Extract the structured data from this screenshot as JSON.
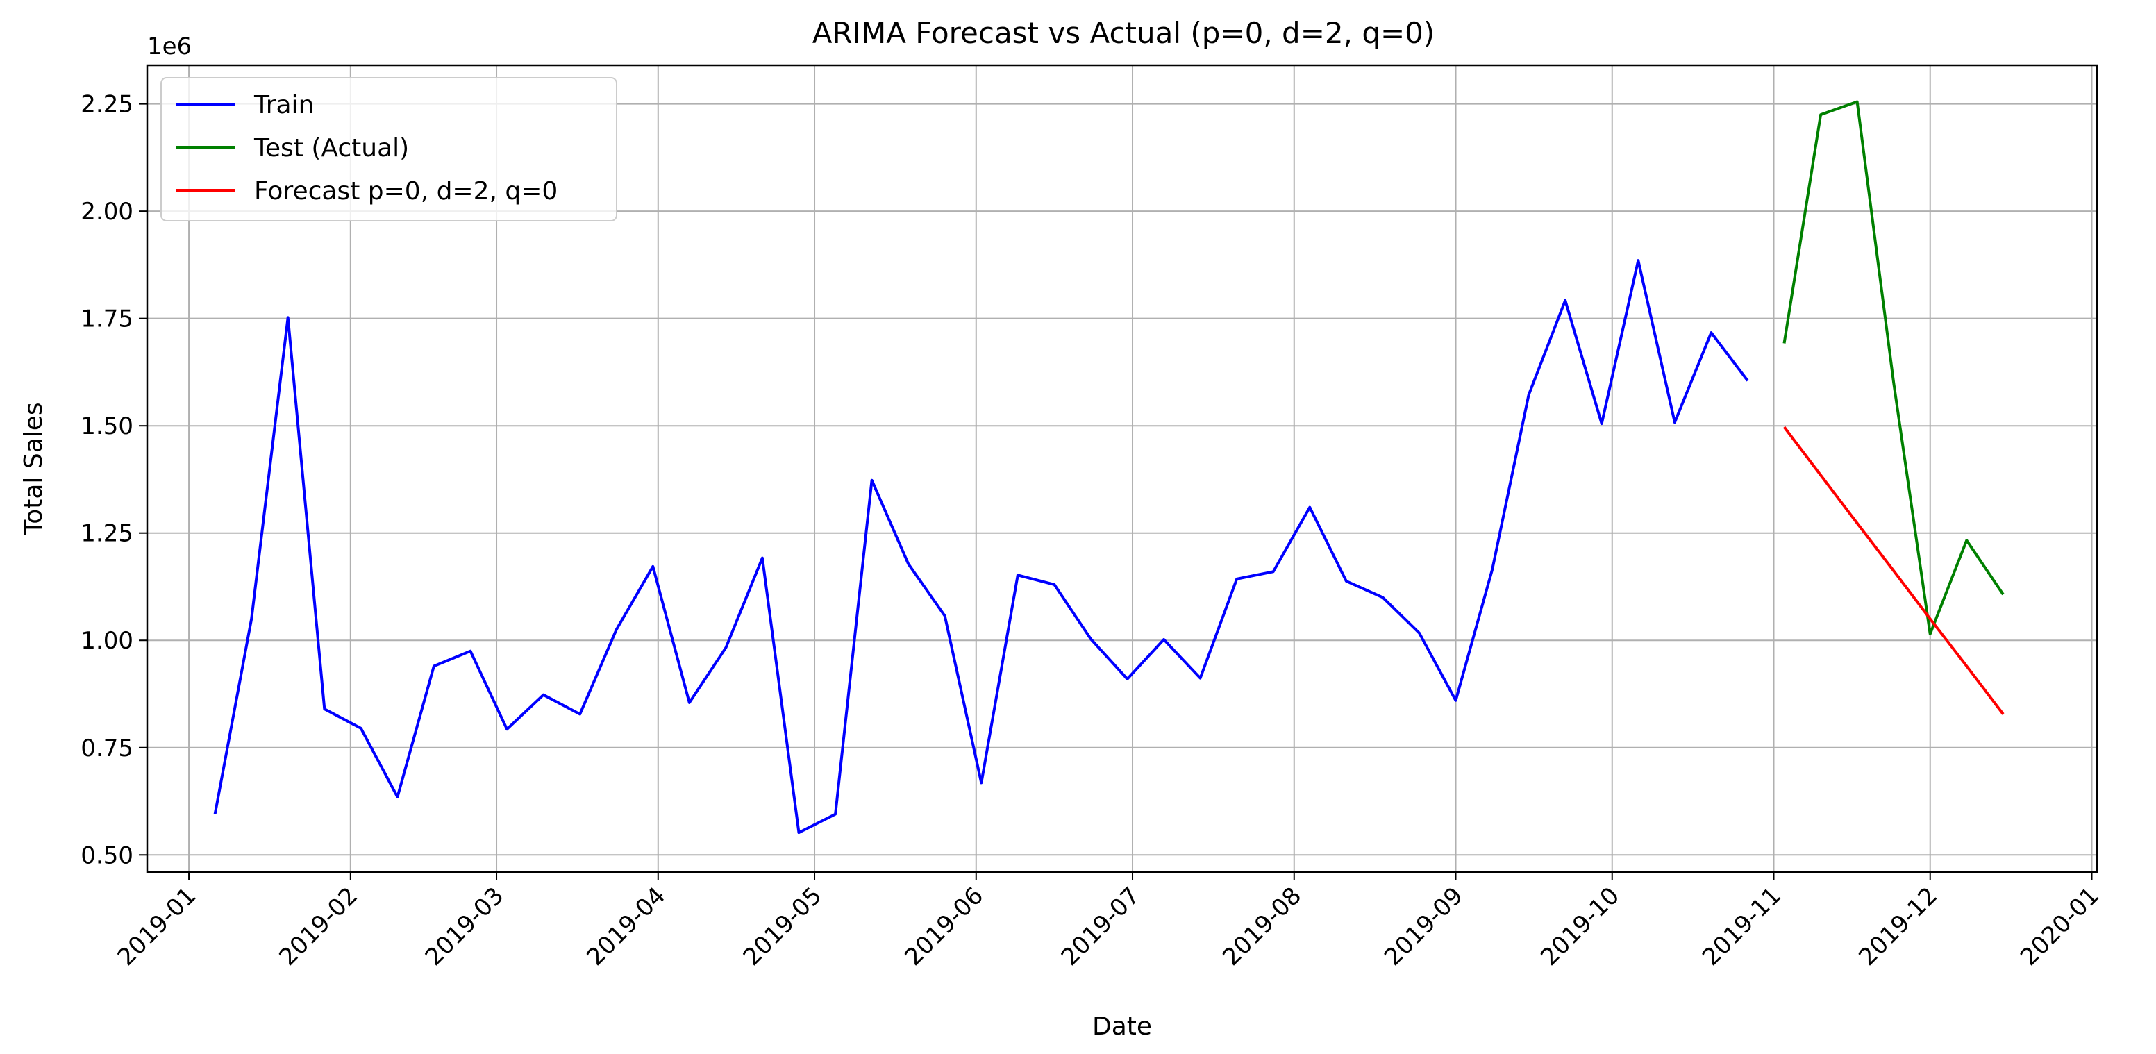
{
  "chart_data": {
    "type": "line",
    "title": "ARIMA Forecast vs Actual (p=0, d=2, q=0)",
    "xlabel": "Date",
    "ylabel": "Total Sales",
    "y_offset_label": "1e6",
    "y_multiplier": 1000000,
    "xlim": [
      "2018-12-24",
      "2020-01-02"
    ],
    "ylim": [
      460000,
      2340000
    ],
    "x_ticks": [
      "2019-01-01",
      "2019-02-01",
      "2019-03-01",
      "2019-04-01",
      "2019-05-01",
      "2019-06-01",
      "2019-07-01",
      "2019-08-01",
      "2019-09-01",
      "2019-10-01",
      "2019-11-01",
      "2019-12-01",
      "2020-01-01"
    ],
    "x_tick_labels": [
      "2019-01",
      "2019-02",
      "2019-03",
      "2019-04",
      "2019-05",
      "2019-06",
      "2019-07",
      "2019-08",
      "2019-09",
      "2019-10",
      "2019-11",
      "2019-12",
      "2020-01"
    ],
    "y_ticks": [
      500000,
      750000,
      1000000,
      1250000,
      1500000,
      1750000,
      2000000,
      2250000
    ],
    "y_tick_labels": [
      "0.50",
      "0.75",
      "1.00",
      "1.25",
      "1.50",
      "1.75",
      "2.00",
      "2.25"
    ],
    "grid": true,
    "legend_position": "top-left",
    "series": [
      {
        "name": "Train",
        "color": "#0000ff",
        "points": [
          [
            "2019-01-06",
            595000
          ],
          [
            "2019-01-13",
            1050000
          ],
          [
            "2019-01-20",
            1752000
          ],
          [
            "2019-01-27",
            840000
          ],
          [
            "2019-02-03",
            795000
          ],
          [
            "2019-02-10",
            635000
          ],
          [
            "2019-02-17",
            940000
          ],
          [
            "2019-02-24",
            975000
          ],
          [
            "2019-03-03",
            793000
          ],
          [
            "2019-03-10",
            873000
          ],
          [
            "2019-03-17",
            828000
          ],
          [
            "2019-03-24",
            1025000
          ],
          [
            "2019-03-31",
            1172000
          ],
          [
            "2019-04-07",
            855000
          ],
          [
            "2019-04-14",
            983000
          ],
          [
            "2019-04-21",
            1192000
          ],
          [
            "2019-04-28",
            552000
          ],
          [
            "2019-05-05",
            595000
          ],
          [
            "2019-05-12",
            1373000
          ],
          [
            "2019-05-19",
            1178000
          ],
          [
            "2019-05-26",
            1057000
          ],
          [
            "2019-06-02",
            668000
          ],
          [
            "2019-06-09",
            1152000
          ],
          [
            "2019-06-16",
            1130000
          ],
          [
            "2019-06-23",
            1003000
          ],
          [
            "2019-06-30",
            910000
          ],
          [
            "2019-07-07",
            1002000
          ],
          [
            "2019-07-14",
            912000
          ],
          [
            "2019-07-21",
            1143000
          ],
          [
            "2019-07-28",
            1160000
          ],
          [
            "2019-08-04",
            1310000
          ],
          [
            "2019-08-11",
            1138000
          ],
          [
            "2019-08-18",
            1100000
          ],
          [
            "2019-08-25",
            1017000
          ],
          [
            "2019-09-01",
            860000
          ],
          [
            "2019-09-08",
            1165000
          ],
          [
            "2019-09-15",
            1572000
          ],
          [
            "2019-09-22",
            1792000
          ],
          [
            "2019-09-29",
            1505000
          ],
          [
            "2019-10-06",
            1885000
          ],
          [
            "2019-10-13",
            1508000
          ],
          [
            "2019-10-20",
            1717000
          ],
          [
            "2019-10-27",
            1605000
          ]
        ]
      },
      {
        "name": "Test (Actual)",
        "color": "#008000",
        "points": [
          [
            "2019-11-03",
            1692000
          ],
          [
            "2019-11-10",
            2225000
          ],
          [
            "2019-11-17",
            2255000
          ],
          [
            "2019-11-24",
            1600000
          ],
          [
            "2019-12-01",
            1015000
          ],
          [
            "2019-12-08",
            1233000
          ],
          [
            "2019-12-15",
            1107000
          ]
        ]
      },
      {
        "name": "Forecast p=0, d=2, q=0",
        "color": "#ff0000",
        "points": [
          [
            "2019-11-03",
            1497000
          ],
          [
            "2019-11-10",
            1385000
          ],
          [
            "2019-11-17",
            1273000
          ],
          [
            "2019-11-24",
            1162000
          ],
          [
            "2019-12-01",
            1050000
          ],
          [
            "2019-12-08",
            940000
          ],
          [
            "2019-12-15",
            828000
          ]
        ]
      }
    ]
  }
}
